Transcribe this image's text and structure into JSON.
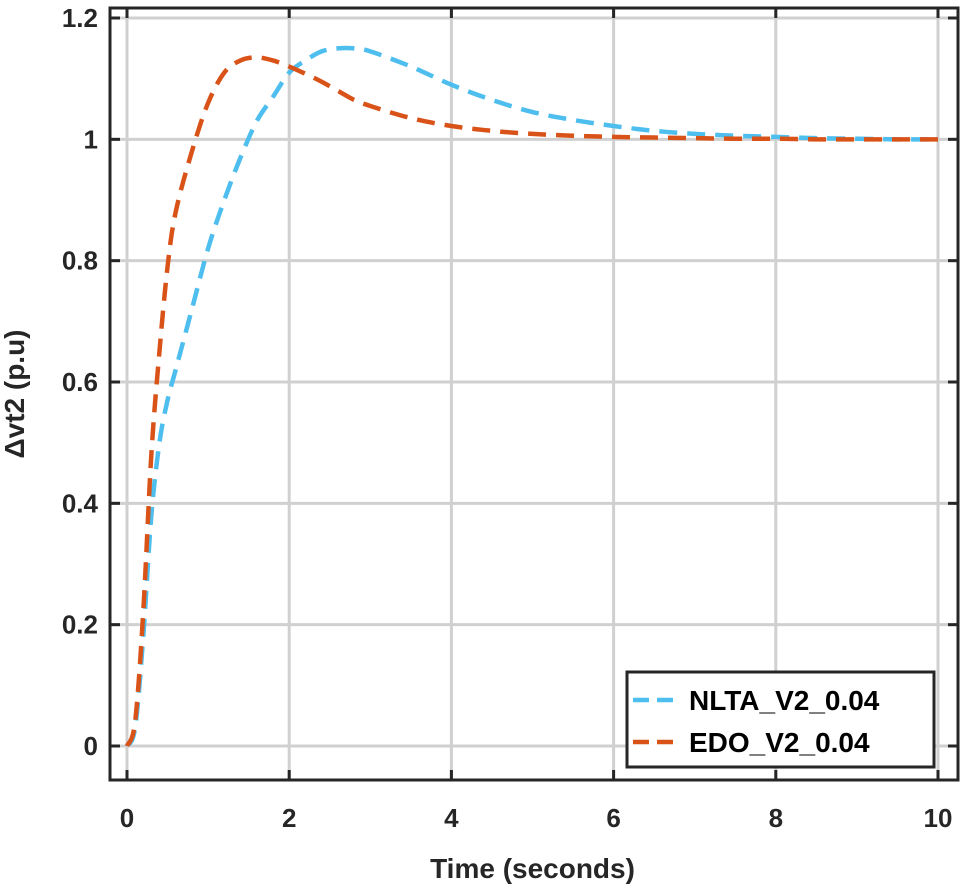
{
  "chart_data": {
    "type": "line",
    "title": "",
    "xlabel": "Time (seconds)",
    "ylabel": "Δvt2 (p.u)",
    "xlim": [
      0,
      10
    ],
    "ylim": [
      0,
      1.2
    ],
    "xticks": [
      0,
      2,
      4,
      6,
      8,
      10
    ],
    "xtick_labels": [
      "0",
      "2",
      "4",
      "6",
      "8",
      "10"
    ],
    "yticks": [
      0,
      0.2,
      0.4,
      0.6,
      0.8,
      1,
      1.2
    ],
    "ytick_labels": [
      "0",
      "0.2",
      "0.4",
      "0.6",
      "0.8",
      "1",
      "1.2"
    ],
    "grid": true,
    "legend_position": "bottom-right",
    "series": [
      {
        "name": "NLTA_V2_0.04",
        "color": "#4dbeee",
        "style": "dashed",
        "x": [
          0,
          0.1,
          0.2,
          0.3,
          0.4,
          0.5,
          0.6,
          0.8,
          1.0,
          1.2,
          1.4,
          1.6,
          1.8,
          2.0,
          2.2,
          2.4,
          2.6,
          2.8,
          3.0,
          3.5,
          4.0,
          4.5,
          5.0,
          5.5,
          6.0,
          6.5,
          7.0,
          7.5,
          8.0,
          8.5,
          9.0,
          9.5,
          10.0
        ],
        "y": [
          0,
          0.03,
          0.18,
          0.38,
          0.5,
          0.57,
          0.62,
          0.72,
          0.82,
          0.9,
          0.97,
          1.03,
          1.07,
          1.11,
          1.13,
          1.145,
          1.15,
          1.15,
          1.145,
          1.12,
          1.09,
          1.065,
          1.045,
          1.032,
          1.022,
          1.014,
          1.009,
          1.006,
          1.004,
          1.002,
          1.001,
          1.0,
          1.0
        ]
      },
      {
        "name": "EDO_V2_0.04",
        "color": "#d95319",
        "style": "dashed",
        "x": [
          0,
          0.1,
          0.2,
          0.3,
          0.4,
          0.5,
          0.6,
          0.8,
          1.0,
          1.2,
          1.4,
          1.6,
          1.8,
          2.0,
          2.2,
          2.4,
          2.6,
          2.8,
          3.0,
          3.5,
          4.0,
          4.5,
          5.0,
          5.5,
          6.0,
          6.5,
          7.0,
          7.5,
          8.0,
          8.5,
          9.0,
          9.5,
          10.0
        ],
        "y": [
          0,
          0.04,
          0.22,
          0.48,
          0.65,
          0.79,
          0.88,
          0.98,
          1.06,
          1.11,
          1.13,
          1.135,
          1.13,
          1.12,
          1.108,
          1.095,
          1.08,
          1.065,
          1.055,
          1.035,
          1.022,
          1.014,
          1.009,
          1.006,
          1.004,
          1.003,
          1.002,
          1.001,
          1.001,
          1.0,
          1.0,
          1.0,
          1.0
        ]
      }
    ]
  }
}
